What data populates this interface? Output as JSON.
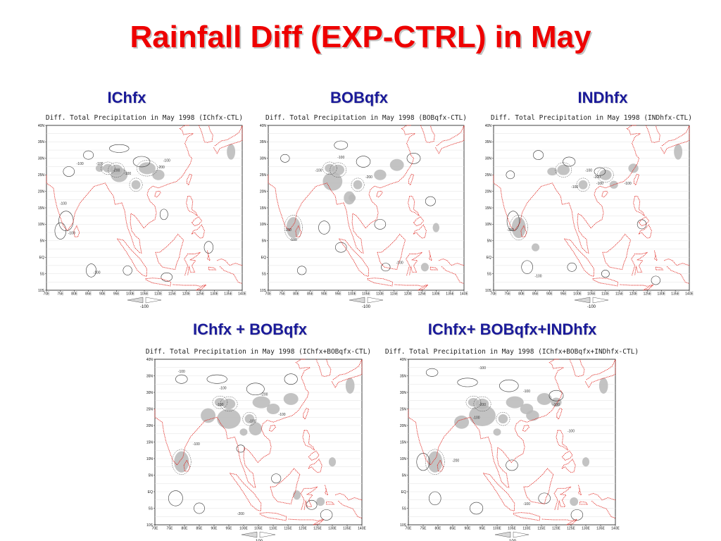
{
  "slide": {
    "title": "Rainfall Diff (EXP-CTRL) in May"
  },
  "colors": {
    "title": "#ee0000",
    "caption": "#1a1a99",
    "coastline": "#e0201a",
    "shading": "#b8b8b8",
    "contour": "#333333"
  },
  "panels": [
    {
      "caption": "IChfx",
      "map_title": "Diff. Total Precipitation in May 1998 (IChfx-CTL)",
      "legend_value": "-100",
      "contour_labels": [
        "-100",
        "-100",
        "-200",
        "-100",
        "-200",
        "-100",
        "-100",
        "-100",
        "-100"
      ]
    },
    {
      "caption": "BOBqfx",
      "map_title": "Diff. Total Precipitation in May 1998 (BOBqfx-CTL)",
      "legend_value": "-100",
      "contour_labels": [
        "-100",
        "-100",
        "-200",
        "-100",
        "-100",
        "-100"
      ]
    },
    {
      "caption": "INDhfx",
      "map_title": "Diff. Total Precipitation in May 1998 (INDhfx-CTL)",
      "legend_value": "-100",
      "contour_labels": [
        "-100",
        "-200",
        "-100",
        "-100",
        "-100",
        "-100",
        "-100"
      ]
    },
    {
      "caption": "IChfx + BOBqfx",
      "map_title": "Diff. Total Precipitation in May 1998 (IChfx+BOBqfx-CTL)",
      "legend_value": "-100",
      "contour_labels": [
        "-100",
        "-100",
        "-200",
        "-100",
        "-100",
        "-100",
        "-100",
        "-200"
      ]
    },
    {
      "caption": "IChfx+ BOBqfx+INDhfx",
      "map_title": "Diff. Total Precipitation in May 1998 (IChfx+BOBqfx+INDhfx-CTL)",
      "legend_value": "-100",
      "contour_labels": [
        "-100",
        "-100",
        "-200",
        "-100",
        "-100",
        "-100",
        "-200",
        "-100"
      ]
    }
  ],
  "axes": {
    "lat_ticks": [
      "40N",
      "35N",
      "30N",
      "25N",
      "20N",
      "15N",
      "10N",
      "5N",
      "EQ",
      "5S",
      "10S"
    ],
    "lon_ticks": [
      "70E",
      "75E",
      "80E",
      "85E",
      "90E",
      "95E",
      "100E",
      "105E",
      "110E",
      "115E",
      "120E",
      "125E",
      "130E",
      "135E",
      "140E"
    ]
  }
}
